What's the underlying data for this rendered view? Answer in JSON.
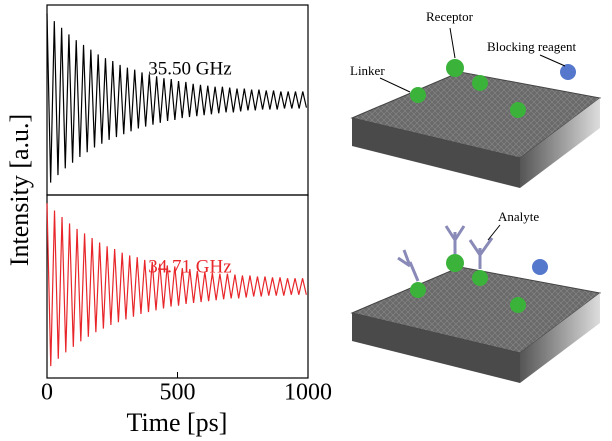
{
  "chart_data": [
    {
      "type": "line",
      "ylabel": "Intensity [a.u.]",
      "annotation": "35.50 GHz",
      "color": "#000000",
      "xlim": [
        0,
        1000
      ],
      "ylim": [
        -1,
        1
      ],
      "x": [
        0,
        14,
        28,
        42,
        56,
        70,
        84,
        98,
        112,
        126,
        140,
        154,
        168,
        182,
        196,
        210,
        224,
        238,
        252,
        266,
        280,
        294,
        308,
        322,
        336,
        350,
        364,
        378,
        392,
        406,
        420,
        434,
        448,
        462,
        476,
        490,
        504,
        518,
        532,
        546,
        560,
        574,
        588,
        602,
        616,
        630,
        644,
        658,
        672,
        686,
        700,
        714,
        728,
        742,
        756,
        770,
        784,
        798,
        812,
        826,
        840,
        854,
        868,
        882,
        896,
        910,
        924,
        938,
        952,
        966,
        980,
        994
      ],
      "values": [
        0.91,
        -0.87,
        0.83,
        -0.79,
        0.76,
        -0.72,
        0.69,
        -0.66,
        0.63,
        -0.6,
        0.58,
        -0.55,
        0.53,
        -0.5,
        0.48,
        -0.46,
        0.44,
        -0.42,
        0.41,
        -0.39,
        0.37,
        -0.36,
        0.34,
        -0.33,
        0.32,
        -0.3,
        0.29,
        -0.28,
        0.27,
        -0.26,
        0.25,
        -0.24,
        0.23,
        -0.22,
        0.22,
        -0.21,
        0.2,
        -0.19,
        0.19,
        -0.18,
        0.17,
        -0.17,
        0.16,
        -0.16,
        0.15,
        -0.15,
        0.14,
        -0.14,
        0.14,
        -0.13,
        0.13,
        -0.13,
        0.12,
        -0.12,
        0.12,
        -0.11,
        0.11,
        -0.11,
        0.11,
        -0.1,
        0.1,
        -0.1,
        0.1,
        -0.1,
        0.09,
        -0.09,
        0.09,
        -0.09,
        0.09,
        -0.09,
        0.09,
        -0.08
      ]
    },
    {
      "type": "line",
      "xlabel": "Time [ps]",
      "annotation": "34.71 GHz",
      "color": "#e8262a",
      "xlim": [
        0,
        1000
      ],
      "ylim": [
        -1,
        1
      ],
      "xticks": [
        0,
        500,
        1000
      ],
      "x": [
        0,
        14.4,
        28.8,
        43.2,
        57.6,
        72,
        86.4,
        100.8,
        115.2,
        129.6,
        144,
        158.4,
        172.8,
        187.2,
        201.6,
        216,
        230.4,
        244.8,
        259.2,
        273.6,
        288,
        302.4,
        316.8,
        331.2,
        345.6,
        360,
        374.4,
        388.8,
        403.2,
        417.6,
        432,
        446.4,
        460.8,
        475.2,
        489.6,
        504,
        518.4,
        532.8,
        547.2,
        561.6,
        576,
        590.4,
        604.8,
        619.2,
        633.6,
        648,
        662.4,
        676.8,
        691.2,
        705.6,
        720,
        734.4,
        748.8,
        763.2,
        777.6,
        792,
        806.4,
        820.8,
        835.2,
        849.6,
        864,
        878.4,
        892.8,
        907.2,
        921.6,
        936,
        950.4,
        964.8,
        979.2,
        993.6
      ],
      "values": [
        0.91,
        -0.87,
        0.83,
        -0.79,
        0.76,
        -0.72,
        0.69,
        -0.66,
        0.63,
        -0.6,
        0.58,
        -0.55,
        0.53,
        -0.5,
        0.48,
        -0.46,
        0.44,
        -0.42,
        0.41,
        -0.39,
        0.37,
        -0.36,
        0.34,
        -0.33,
        0.32,
        -0.3,
        0.29,
        -0.28,
        0.27,
        -0.26,
        0.25,
        -0.24,
        0.23,
        -0.22,
        0.22,
        -0.21,
        0.2,
        -0.19,
        0.19,
        -0.18,
        0.17,
        -0.17,
        0.16,
        -0.16,
        0.15,
        -0.15,
        0.14,
        -0.14,
        0.14,
        -0.13,
        0.13,
        -0.13,
        0.12,
        -0.12,
        0.12,
        -0.11,
        0.11,
        -0.11,
        0.11,
        -0.1,
        0.1,
        -0.1,
        0.1,
        -0.1,
        0.09,
        -0.09,
        0.09,
        -0.09,
        0.09,
        -0.09
      ]
    }
  ],
  "diagram": {
    "labels": [
      "Receptor",
      "Blocking reagent",
      "Linker",
      "Analyte"
    ]
  }
}
